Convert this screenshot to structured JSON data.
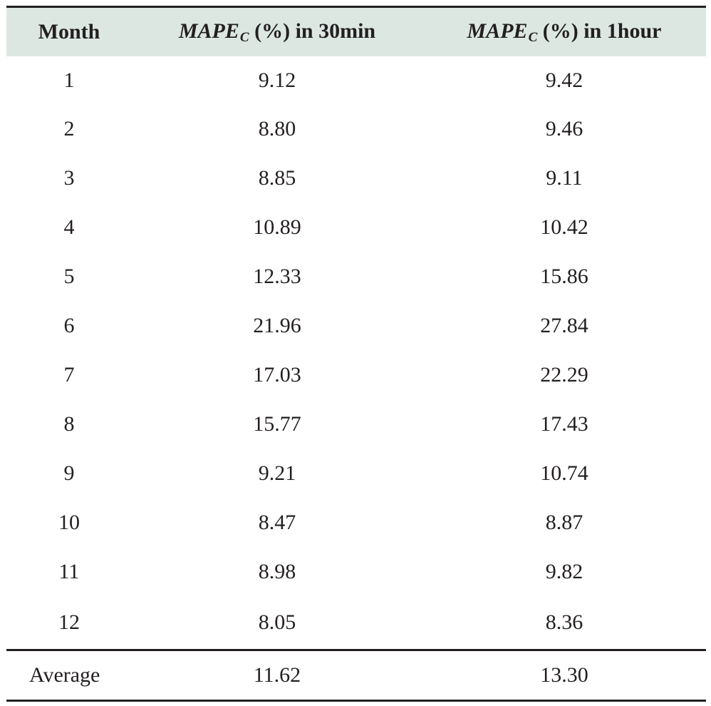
{
  "table": {
    "headers": {
      "month": "Month",
      "col1_symbol": "MAPE",
      "col1_sub": "C",
      "col1_rest": " (%) in 30min",
      "col2_symbol": "MAPE",
      "col2_sub": "C",
      "col2_rest": " (%) in 1hour"
    },
    "rows": [
      {
        "month": "1",
        "m30": "9.12",
        "h1": "9.42"
      },
      {
        "month": "2",
        "m30": "8.80",
        "h1": "9.46"
      },
      {
        "month": "3",
        "m30": "8.85",
        "h1": "9.11"
      },
      {
        "month": "4",
        "m30": "10.89",
        "h1": "10.42"
      },
      {
        "month": "5",
        "m30": "12.33",
        "h1": "15.86"
      },
      {
        "month": "6",
        "m30": "21.96",
        "h1": "27.84"
      },
      {
        "month": "7",
        "m30": "17.03",
        "h1": "22.29"
      },
      {
        "month": "8",
        "m30": "15.77",
        "h1": "17.43"
      },
      {
        "month": "9",
        "m30": "9.21",
        "h1": "10.74"
      },
      {
        "month": "10",
        "m30": "8.47",
        "h1": "8.87"
      },
      {
        "month": "11",
        "m30": "8.98",
        "h1": "9.82"
      },
      {
        "month": "12",
        "m30": "8.05",
        "h1": "8.36"
      }
    ],
    "average": {
      "label": "Average",
      "m30": "11.62",
      "h1": "13.30"
    }
  }
}
